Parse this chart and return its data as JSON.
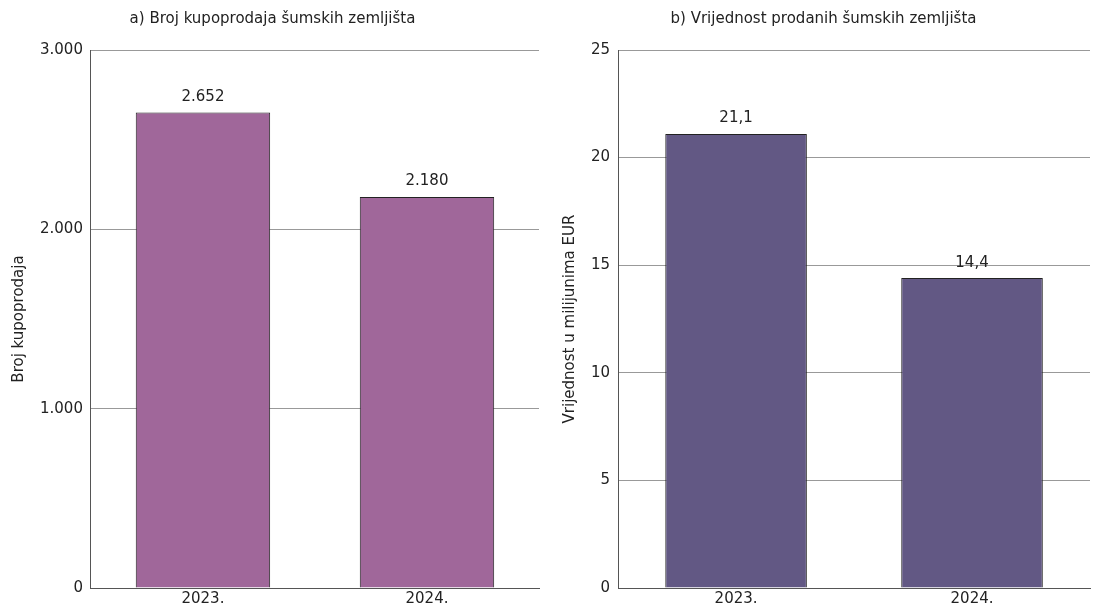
{
  "chart_data": [
    {
      "type": "bar",
      "title": "a) Broj kupoprodaja šumskih zemljišta",
      "ylabel": "Broj kupoprodaja",
      "categories": [
        "2023.",
        "2024."
      ],
      "values": [
        2652,
        2180
      ],
      "value_labels": [
        "2.652",
        "2.180"
      ],
      "color": "#a0679a",
      "ylim": [
        0,
        3000
      ],
      "yticks": [
        {
          "value": 0,
          "label": "0"
        },
        {
          "value": 1000,
          "label": "1.000"
        },
        {
          "value": 2000,
          "label": "2.000"
        },
        {
          "value": 3000,
          "label": "3.000"
        }
      ],
      "grid": "y",
      "legend": false
    },
    {
      "type": "bar",
      "title": "b) Vrijednost prodanih šumskih zemljišta",
      "ylabel": "Vrijednost u milijunima EUR",
      "categories": [
        "2023.",
        "2024."
      ],
      "values": [
        21.1,
        14.4
      ],
      "value_labels": [
        "21,1",
        "14,4"
      ],
      "color": "#625884",
      "ylim": [
        0,
        25
      ],
      "yticks": [
        0,
        5,
        10,
        15,
        20,
        25
      ],
      "grid": "y",
      "legend": false
    }
  ]
}
